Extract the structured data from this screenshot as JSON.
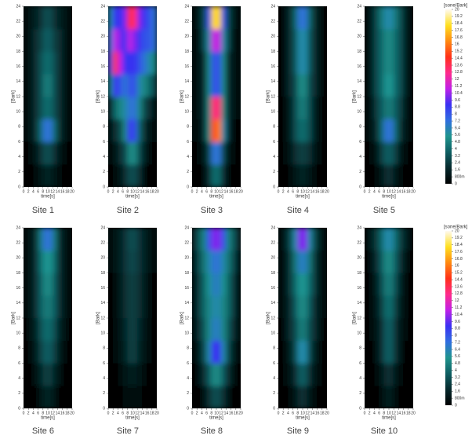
{
  "chart_data": [
    {
      "type": "heatmap",
      "title": "Site 1",
      "xlabel": "time[s]",
      "ylabel": "[Bark]",
      "xlim": [
        0,
        20
      ],
      "ylim": [
        0,
        24
      ],
      "xticks": [
        0,
        2,
        4,
        6,
        8,
        10,
        12,
        14,
        16,
        18,
        20
      ],
      "yticks": [
        0,
        2,
        4,
        6,
        8,
        10,
        12,
        14,
        16,
        18,
        20,
        22,
        24
      ],
      "values": [
        [
          0,
          0,
          0.3,
          0.8,
          1.5,
          1.5,
          0.8,
          0.3,
          0,
          0
        ],
        [
          0,
          0.3,
          1,
          2,
          3,
          3,
          2,
          1,
          0.3,
          0
        ],
        [
          0.3,
          0.8,
          2,
          4,
          7,
          7,
          4,
          2,
          0.8,
          0.3
        ],
        [
          0.3,
          1,
          2,
          3,
          4,
          4,
          3,
          2,
          1,
          0.3
        ],
        [
          0.3,
          1,
          2,
          3,
          4.5,
          4.5,
          3,
          2,
          1,
          0.3
        ],
        [
          0.3,
          1,
          2,
          3,
          4,
          4,
          3,
          2,
          1,
          0.3
        ],
        [
          0.3,
          1,
          2,
          2.5,
          3.5,
          3.5,
          2.5,
          2,
          1,
          0.3
        ],
        [
          0.3,
          1,
          1.5,
          2,
          3,
          3,
          2,
          1.5,
          1,
          0.3
        ]
      ]
    },
    {
      "type": "heatmap",
      "title": "Site 2",
      "xlabel": "time[s]",
      "ylabel": "[Bark]",
      "xlim": [
        0,
        20
      ],
      "ylim": [
        0,
        24
      ],
      "xticks": [
        0,
        2,
        4,
        6,
        8,
        10,
        12,
        14,
        16,
        18,
        20
      ],
      "yticks": [
        0,
        2,
        4,
        6,
        8,
        10,
        12,
        14,
        16,
        18,
        20,
        22,
        24
      ],
      "values": [
        [
          0,
          0.3,
          1,
          2,
          3,
          3,
          2,
          0.5,
          0.2,
          0
        ],
        [
          0.3,
          1,
          2,
          3,
          5,
          5,
          3,
          1.5,
          0.5,
          0.2
        ],
        [
          1,
          2,
          3,
          5,
          9,
          8,
          4,
          2,
          1,
          0.5
        ],
        [
          2,
          4,
          5,
          6,
          7,
          7,
          5,
          3,
          2,
          1
        ],
        [
          5,
          9,
          8,
          7,
          8,
          8,
          6,
          5,
          4,
          3
        ],
        [
          8,
          14,
          11,
          9,
          9,
          9,
          8,
          7,
          6,
          5
        ],
        [
          7,
          11,
          10,
          9,
          11,
          10,
          9,
          8,
          8,
          7
        ],
        [
          6,
          9,
          9,
          10,
          14,
          13,
          10,
          9,
          8,
          7
        ]
      ]
    },
    {
      "type": "heatmap",
      "title": "Site 3",
      "xlabel": "time[s]",
      "ylabel": "[Bark]",
      "xlim": [
        0,
        20
      ],
      "ylim": [
        0,
        24
      ],
      "xticks": [
        0,
        2,
        4,
        6,
        8,
        10,
        12,
        14,
        16,
        18,
        20
      ],
      "yticks": [
        0,
        2,
        4,
        6,
        8,
        10,
        12,
        14,
        16,
        18,
        20,
        22,
        24
      ],
      "values": [
        [
          0,
          0,
          0.5,
          2,
          4,
          4,
          2,
          0.5,
          0,
          0
        ],
        [
          0,
          0.3,
          1,
          3,
          7,
          7,
          3,
          1,
          0.3,
          0
        ],
        [
          0.3,
          0.5,
          2,
          5,
          15,
          16,
          6,
          2,
          0.5,
          0.2
        ],
        [
          0.3,
          1,
          2,
          5,
          13,
          13,
          5,
          2,
          1,
          0.3
        ],
        [
          0.3,
          1,
          2,
          5,
          8,
          8,
          5,
          2,
          1,
          0.3
        ],
        [
          0.3,
          1,
          2,
          5,
          8,
          8,
          5,
          2,
          1,
          0.3
        ],
        [
          0.5,
          1,
          3,
          6,
          11,
          11,
          6,
          3,
          1,
          0.5
        ],
        [
          0.5,
          1.5,
          3,
          8,
          18,
          18,
          8,
          3,
          1.5,
          0.5
        ]
      ]
    },
    {
      "type": "heatmap",
      "title": "Site 4",
      "xlabel": "time[s]",
      "ylabel": "[Bark]",
      "xlim": [
        0,
        20
      ],
      "ylim": [
        0,
        24
      ],
      "xticks": [
        0,
        2,
        4,
        6,
        8,
        10,
        12,
        14,
        16,
        18,
        20
      ],
      "yticks": [
        0,
        2,
        4,
        6,
        8,
        10,
        12,
        14,
        16,
        18,
        20,
        22,
        24
      ],
      "values": [
        [
          0,
          0,
          0.3,
          1,
          1.5,
          1.5,
          1,
          0.3,
          0,
          0
        ],
        [
          0,
          0.3,
          1,
          2,
          2.5,
          2.5,
          2,
          1,
          0.3,
          0
        ],
        [
          0.2,
          0.5,
          1.5,
          3,
          4,
          4,
          3,
          1.5,
          0.5,
          0.2
        ],
        [
          0.2,
          0.5,
          1.5,
          3,
          4.5,
          4.5,
          3,
          1.5,
          0.5,
          0.2
        ],
        [
          0.2,
          0.8,
          2,
          3,
          5,
          5,
          3,
          2,
          0.8,
          0.2
        ],
        [
          0.2,
          0.8,
          2,
          3.5,
          6,
          6,
          3.5,
          2,
          0.8,
          0.2
        ],
        [
          0.2,
          0.8,
          2,
          3.5,
          6,
          6,
          3.5,
          2,
          0.8,
          0.2
        ],
        [
          0.2,
          0.8,
          2,
          4,
          7,
          7,
          4,
          2,
          0.8,
          0.2
        ]
      ]
    },
    {
      "type": "heatmap",
      "title": "Site 5",
      "xlabel": "time[s]",
      "ylabel": "[Bark]",
      "xlim": [
        0,
        20
      ],
      "ylim": [
        0,
        24
      ],
      "xticks": [
        0,
        2,
        4,
        6,
        8,
        10,
        12,
        14,
        16,
        18,
        20
      ],
      "yticks": [
        0,
        2,
        4,
        6,
        8,
        10,
        12,
        14,
        16,
        18,
        20,
        22,
        24
      ],
      "values": [
        [
          0,
          0,
          0.3,
          1,
          2,
          2,
          1,
          0.3,
          0,
          0
        ],
        [
          0,
          0.3,
          1,
          2.5,
          3.5,
          3.5,
          2.5,
          1,
          0.3,
          0
        ],
        [
          0.3,
          1,
          2,
          4,
          7,
          7,
          4,
          2,
          1,
          0.3
        ],
        [
          0.5,
          1,
          2.5,
          3.5,
          4.5,
          4.5,
          3.5,
          2.5,
          1,
          0.5
        ],
        [
          0.5,
          1.5,
          3,
          4,
          5.5,
          5.5,
          4,
          3,
          1.5,
          0.5
        ],
        [
          0.5,
          1.5,
          3,
          4,
          5,
          5,
          4,
          3,
          1.5,
          0.5
        ],
        [
          0.5,
          1.5,
          3,
          4,
          5,
          5,
          4,
          3,
          1.5,
          0.5
        ],
        [
          0.5,
          1.5,
          3,
          4.5,
          6,
          6,
          4.5,
          3,
          1.5,
          0.5
        ]
      ]
    },
    {
      "type": "heatmap",
      "title": "Site 6",
      "xlabel": "time[s]",
      "ylabel": "[Bark]",
      "xlim": [
        0,
        20
      ],
      "ylim": [
        0,
        24
      ],
      "xticks": [
        0,
        2,
        4,
        6,
        8,
        10,
        12,
        14,
        16,
        18,
        20
      ],
      "yticks": [
        0,
        2,
        4,
        6,
        8,
        10,
        12,
        14,
        16,
        18,
        20,
        22,
        24
      ],
      "values": [
        [
          0,
          0,
          0.2,
          0.8,
          1.5,
          1.5,
          0.8,
          0.2,
          0,
          0
        ],
        [
          0,
          0.2,
          0.8,
          1.5,
          2.5,
          2.5,
          1.5,
          0.8,
          0.2,
          0
        ],
        [
          0.2,
          0.5,
          1.2,
          2.5,
          3.5,
          3.5,
          2.5,
          1.2,
          0.5,
          0.2
        ],
        [
          0.2,
          0.8,
          1.5,
          3,
          4,
          4,
          3,
          1.5,
          0.8,
          0.2
        ],
        [
          0.3,
          1,
          2,
          3.5,
          4.5,
          4.5,
          3.5,
          2,
          1,
          0.3
        ],
        [
          0.3,
          1,
          2,
          3.5,
          5,
          5,
          3.5,
          2,
          1,
          0.3
        ],
        [
          0.3,
          1,
          2,
          4,
          5.5,
          5.5,
          4,
          2,
          1,
          0.3
        ],
        [
          0.3,
          1,
          2,
          4.5,
          7,
          7,
          4.5,
          2,
          1,
          0.3
        ]
      ]
    },
    {
      "type": "heatmap",
      "title": "Site 7",
      "xlabel": "time[s]",
      "ylabel": "[Bark]",
      "xlim": [
        0,
        20
      ],
      "ylim": [
        0,
        24
      ],
      "xticks": [
        0,
        2,
        4,
        6,
        8,
        10,
        12,
        14,
        16,
        18,
        20
      ],
      "yticks": [
        0,
        2,
        4,
        6,
        8,
        10,
        12,
        14,
        16,
        18,
        20,
        22,
        24
      ],
      "values": [
        [
          0,
          0,
          0,
          0.3,
          0.6,
          0.6,
          0.3,
          0,
          0,
          0
        ],
        [
          0,
          0,
          0.3,
          0.8,
          1.2,
          1.2,
          0.8,
          0.3,
          0,
          0
        ],
        [
          0.1,
          0.3,
          0.8,
          1.5,
          2.5,
          2.5,
          1.5,
          0.8,
          0.3,
          0.1
        ],
        [
          0.1,
          0.5,
          1,
          1.8,
          2.5,
          2.5,
          1.8,
          1,
          0.5,
          0.1
        ],
        [
          0.2,
          0.6,
          1.2,
          2,
          2.5,
          2.5,
          2,
          1.2,
          0.6,
          0.2
        ],
        [
          0.2,
          0.6,
          1.2,
          2,
          2.5,
          2.5,
          2,
          1.2,
          0.6,
          0.2
        ],
        [
          0.3,
          0.8,
          1.5,
          2.2,
          2.8,
          2.8,
          2.2,
          1.5,
          0.8,
          0.3
        ],
        [
          0.3,
          0.8,
          1.5,
          2.2,
          3,
          3,
          2.2,
          1.5,
          0.8,
          0.3
        ]
      ]
    },
    {
      "type": "heatmap",
      "title": "Site 8",
      "xlabel": "time[s]",
      "ylabel": "[Bark]",
      "xlim": [
        0,
        20
      ],
      "ylim": [
        0,
        24
      ],
      "xticks": [
        0,
        2,
        4,
        6,
        8,
        10,
        12,
        14,
        16,
        18,
        20
      ],
      "yticks": [
        0,
        2,
        4,
        6,
        8,
        10,
        12,
        14,
        16,
        18,
        20,
        22,
        24
      ],
      "values": [
        [
          0,
          0.2,
          0.8,
          2,
          3,
          3,
          2,
          0.8,
          0.2,
          0
        ],
        [
          0.2,
          0.8,
          2,
          3.5,
          5,
          5,
          3.5,
          2,
          0.8,
          0.2
        ],
        [
          0.5,
          1.5,
          3,
          6,
          9,
          9,
          6,
          3,
          1.5,
          0.5
        ],
        [
          0.8,
          2,
          3.5,
          5,
          6.5,
          6.5,
          5,
          3.5,
          2,
          0.8
        ],
        [
          1,
          2.5,
          4,
          5,
          6,
          6,
          5,
          4,
          2.5,
          1
        ],
        [
          1,
          2.5,
          4,
          5.5,
          6.5,
          6.5,
          5.5,
          4,
          2.5,
          1
        ],
        [
          1.5,
          3,
          4.5,
          6,
          7,
          7,
          6,
          4.5,
          3,
          1.5
        ],
        [
          2,
          3.5,
          5,
          8,
          10,
          10,
          8,
          5,
          3.5,
          2
        ]
      ]
    },
    {
      "type": "heatmap",
      "title": "Site 9",
      "xlabel": "time[s]",
      "ylabel": "[Bark]",
      "xlim": [
        0,
        20
      ],
      "ylim": [
        0,
        24
      ],
      "xticks": [
        0,
        2,
        4,
        6,
        8,
        10,
        12,
        14,
        16,
        18,
        20
      ],
      "yticks": [
        0,
        2,
        4,
        6,
        8,
        10,
        12,
        14,
        16,
        18,
        20,
        22,
        24
      ],
      "values": [
        [
          0,
          0,
          0.3,
          1,
          2,
          2,
          1,
          0.3,
          0,
          0
        ],
        [
          0,
          0.3,
          1,
          2,
          3.5,
          3.5,
          2,
          1,
          0.3,
          0
        ],
        [
          0.2,
          0.5,
          1.5,
          3,
          6,
          6,
          3,
          1.5,
          0.5,
          0.2
        ],
        [
          0.2,
          0.8,
          2,
          3,
          4.5,
          4.5,
          3,
          2,
          0.8,
          0.2
        ],
        [
          0.3,
          1,
          2,
          3.5,
          5,
          5,
          3.5,
          2,
          1,
          0.3
        ],
        [
          0.3,
          1,
          2.5,
          4,
          5.5,
          5.5,
          4,
          2.5,
          1,
          0.3
        ],
        [
          0.3,
          1,
          2.5,
          4.5,
          6.5,
          6.5,
          4.5,
          2.5,
          1,
          0.3
        ],
        [
          0.5,
          1.5,
          3,
          6,
          10,
          10,
          6,
          3,
          1.5,
          0.5
        ]
      ]
    },
    {
      "type": "heatmap",
      "title": "Site 10",
      "xlabel": "time[s]",
      "ylabel": "[Bark]",
      "xlim": [
        0,
        20
      ],
      "ylim": [
        0,
        24
      ],
      "xticks": [
        0,
        2,
        4,
        6,
        8,
        10,
        12,
        14,
        16,
        18,
        20
      ],
      "yticks": [
        0,
        2,
        4,
        6,
        8,
        10,
        12,
        14,
        16,
        18,
        20,
        22,
        24
      ],
      "values": [
        [
          0,
          0,
          0,
          0.5,
          1.2,
          1.2,
          0.5,
          0,
          0,
          0
        ],
        [
          0,
          0,
          0.3,
          1,
          2,
          2,
          1,
          0.3,
          0,
          0
        ],
        [
          0,
          0.2,
          0.8,
          2,
          3.5,
          3.5,
          2,
          0.8,
          0.2,
          0
        ],
        [
          0.1,
          0.3,
          1,
          2,
          3.5,
          3.5,
          2,
          1,
          0.3,
          0.1
        ],
        [
          0.1,
          0.5,
          1.2,
          2.5,
          4,
          4,
          2.5,
          1.2,
          0.5,
          0.1
        ],
        [
          0.2,
          0.6,
          1.5,
          3,
          4.5,
          4.5,
          3,
          1.5,
          0.6,
          0.2
        ],
        [
          0.2,
          0.8,
          2,
          3.5,
          5,
          5,
          3.5,
          2,
          0.8,
          0.2
        ],
        [
          0.5,
          1.5,
          2.5,
          4,
          6,
          6,
          4,
          2.5,
          1.5,
          0.5
        ]
      ]
    }
  ],
  "colorbar": {
    "label": "[sone/Bark]",
    "zlim": [
      0,
      20
    ],
    "ticks": [
      0,
      {
        "value": 0.8,
        "label": "800m"
      },
      1.6,
      2.4,
      3.2,
      4,
      4.8,
      5.6,
      6.4,
      7.2,
      8,
      8.8,
      9.6,
      10.4,
      11.2,
      12,
      12.8,
      13.6,
      14.4,
      15.2,
      16,
      16.8,
      17.6,
      18.4,
      19.2,
      20
    ],
    "colors": [
      "#000000",
      "#06282c",
      "#0e5e62",
      "#1f948e",
      "#2f6ee0",
      "#3a30f2",
      "#c020e8",
      "#ff2a8a",
      "#ff3018",
      "#ff8a10",
      "#ffe020",
      "#fffaf0"
    ]
  }
}
